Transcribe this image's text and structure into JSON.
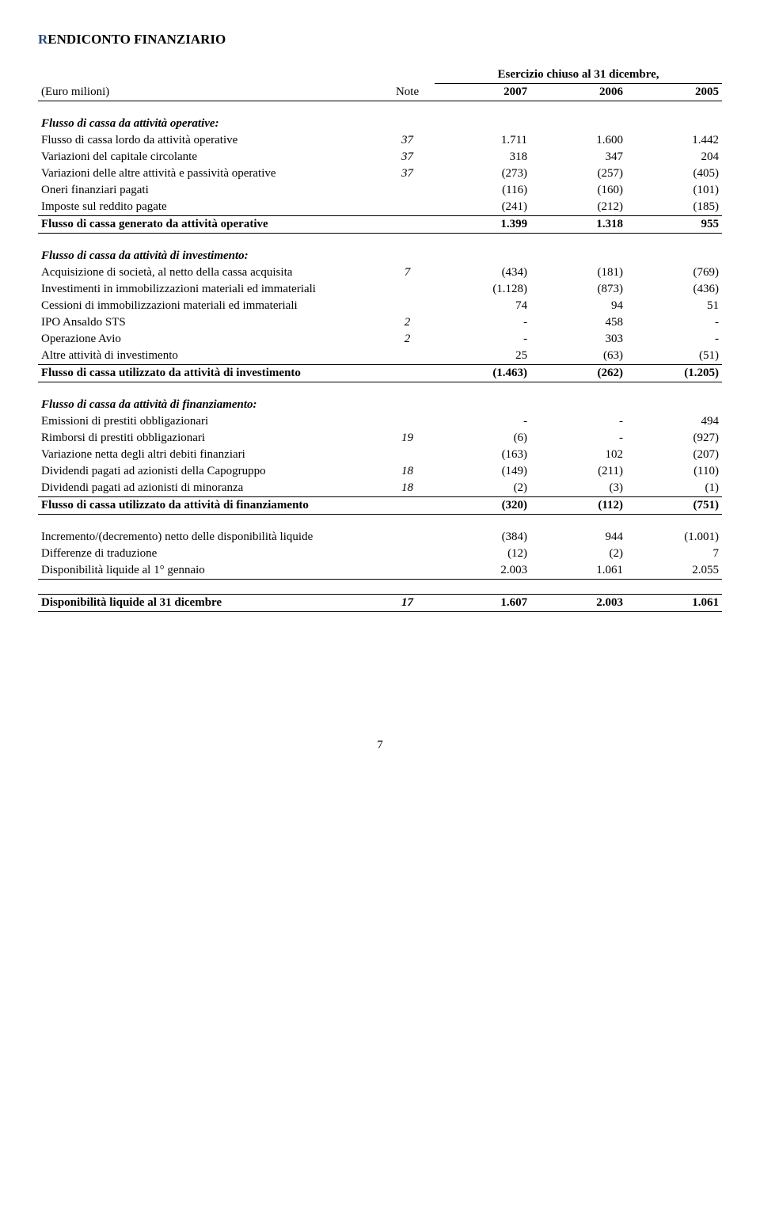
{
  "title_letter": "R",
  "title_rest": "ENDICONTO FINANZIARIO",
  "period_header": "Esercizio chiuso al 31 dicembre,",
  "unit_label": "(Euro milioni)",
  "note_label": "Note",
  "years": [
    "2007",
    "2006",
    "2005"
  ],
  "page_number": "7",
  "sections": {
    "operating": {
      "title": "Flusso di cassa da attività operative:",
      "rows": [
        {
          "label": "Flusso di cassa lordo da attività operative",
          "note": "37",
          "v": [
            "1.711",
            "1.600",
            "1.442"
          ]
        },
        {
          "label": "Variazioni del capitale circolante",
          "note": "37",
          "v": [
            "318",
            "347",
            "204"
          ]
        },
        {
          "label": "Variazioni delle altre attività e passività operative",
          "note": "37",
          "v": [
            "(273)",
            "(257)",
            "(405)"
          ]
        },
        {
          "label": "Oneri finanziari pagati",
          "note": "",
          "v": [
            "(116)",
            "(160)",
            "(101)"
          ]
        },
        {
          "label": "Imposte sul reddito pagate",
          "note": "",
          "v": [
            "(241)",
            "(212)",
            "(185)"
          ]
        }
      ],
      "total": {
        "label": "Flusso di cassa generato da attività operative",
        "v": [
          "1.399",
          "1.318",
          "955"
        ]
      }
    },
    "investing": {
      "title": "Flusso di cassa da attività di investimento:",
      "rows": [
        {
          "label": "Acquisizione di società, al netto della cassa acquisita",
          "note": "7",
          "v": [
            "(434)",
            "(181)",
            "(769)"
          ]
        },
        {
          "label": "Investimenti in immobilizzazioni materiali ed immateriali",
          "note": "",
          "v": [
            "(1.128)",
            "(873)",
            "(436)"
          ]
        },
        {
          "label": "Cessioni di immobilizzazioni materiali ed immateriali",
          "note": "",
          "v": [
            "74",
            "94",
            "51"
          ]
        },
        {
          "label": "IPO Ansaldo STS",
          "note": "2",
          "v": [
            "-",
            "458",
            "-"
          ]
        },
        {
          "label": "Operazione Avio",
          "note": "2",
          "v": [
            "-",
            "303",
            "-"
          ]
        },
        {
          "label": "Altre attività di investimento",
          "note": "",
          "v": [
            "25",
            "(63)",
            "(51)"
          ]
        }
      ],
      "total": {
        "label": "Flusso di cassa utilizzato da attività di investimento",
        "v": [
          "(1.463)",
          "(262)",
          "(1.205)"
        ]
      }
    },
    "financing": {
      "title": "Flusso di cassa da attività di finanziamento:",
      "rows": [
        {
          "label": "Emissioni di prestiti obbligazionari",
          "note": "",
          "v": [
            "-",
            "-",
            "494"
          ]
        },
        {
          "label": "Rimborsi di prestiti obbligazionari",
          "note": "19",
          "v": [
            "(6)",
            "-",
            "(927)"
          ]
        },
        {
          "label": "Variazione netta degli altri debiti finanziari",
          "note": "",
          "v": [
            "(163)",
            "102",
            "(207)"
          ]
        },
        {
          "label": "Dividendi pagati ad azionisti della Capogruppo",
          "note": "18",
          "v": [
            "(149)",
            "(211)",
            "(110)"
          ]
        },
        {
          "label": "Dividendi pagati ad azionisti di minoranza",
          "note": "18",
          "v": [
            "(2)",
            "(3)",
            "(1)"
          ]
        }
      ],
      "total": {
        "label": "Flusso di cassa utilizzato da attività di finanziamento",
        "v": [
          "(320)",
          "(112)",
          "(751)"
        ]
      }
    },
    "reconciliation": {
      "rows": [
        {
          "label": "Incremento/(decremento) netto delle disponibilità liquide",
          "note": "",
          "v": [
            "(384)",
            "944",
            "(1.001)"
          ]
        },
        {
          "label": "Differenze di traduzione",
          "note": "",
          "v": [
            "(12)",
            "(2)",
            "7"
          ]
        },
        {
          "label": "Disponibilità liquide al 1° gennaio",
          "note": "",
          "v": [
            "2.003",
            "1.061",
            "2.055"
          ]
        }
      ]
    },
    "closing": {
      "label": "Disponibilità liquide al 31 dicembre",
      "note": "17",
      "v": [
        "1.607",
        "2.003",
        "1.061"
      ]
    }
  }
}
